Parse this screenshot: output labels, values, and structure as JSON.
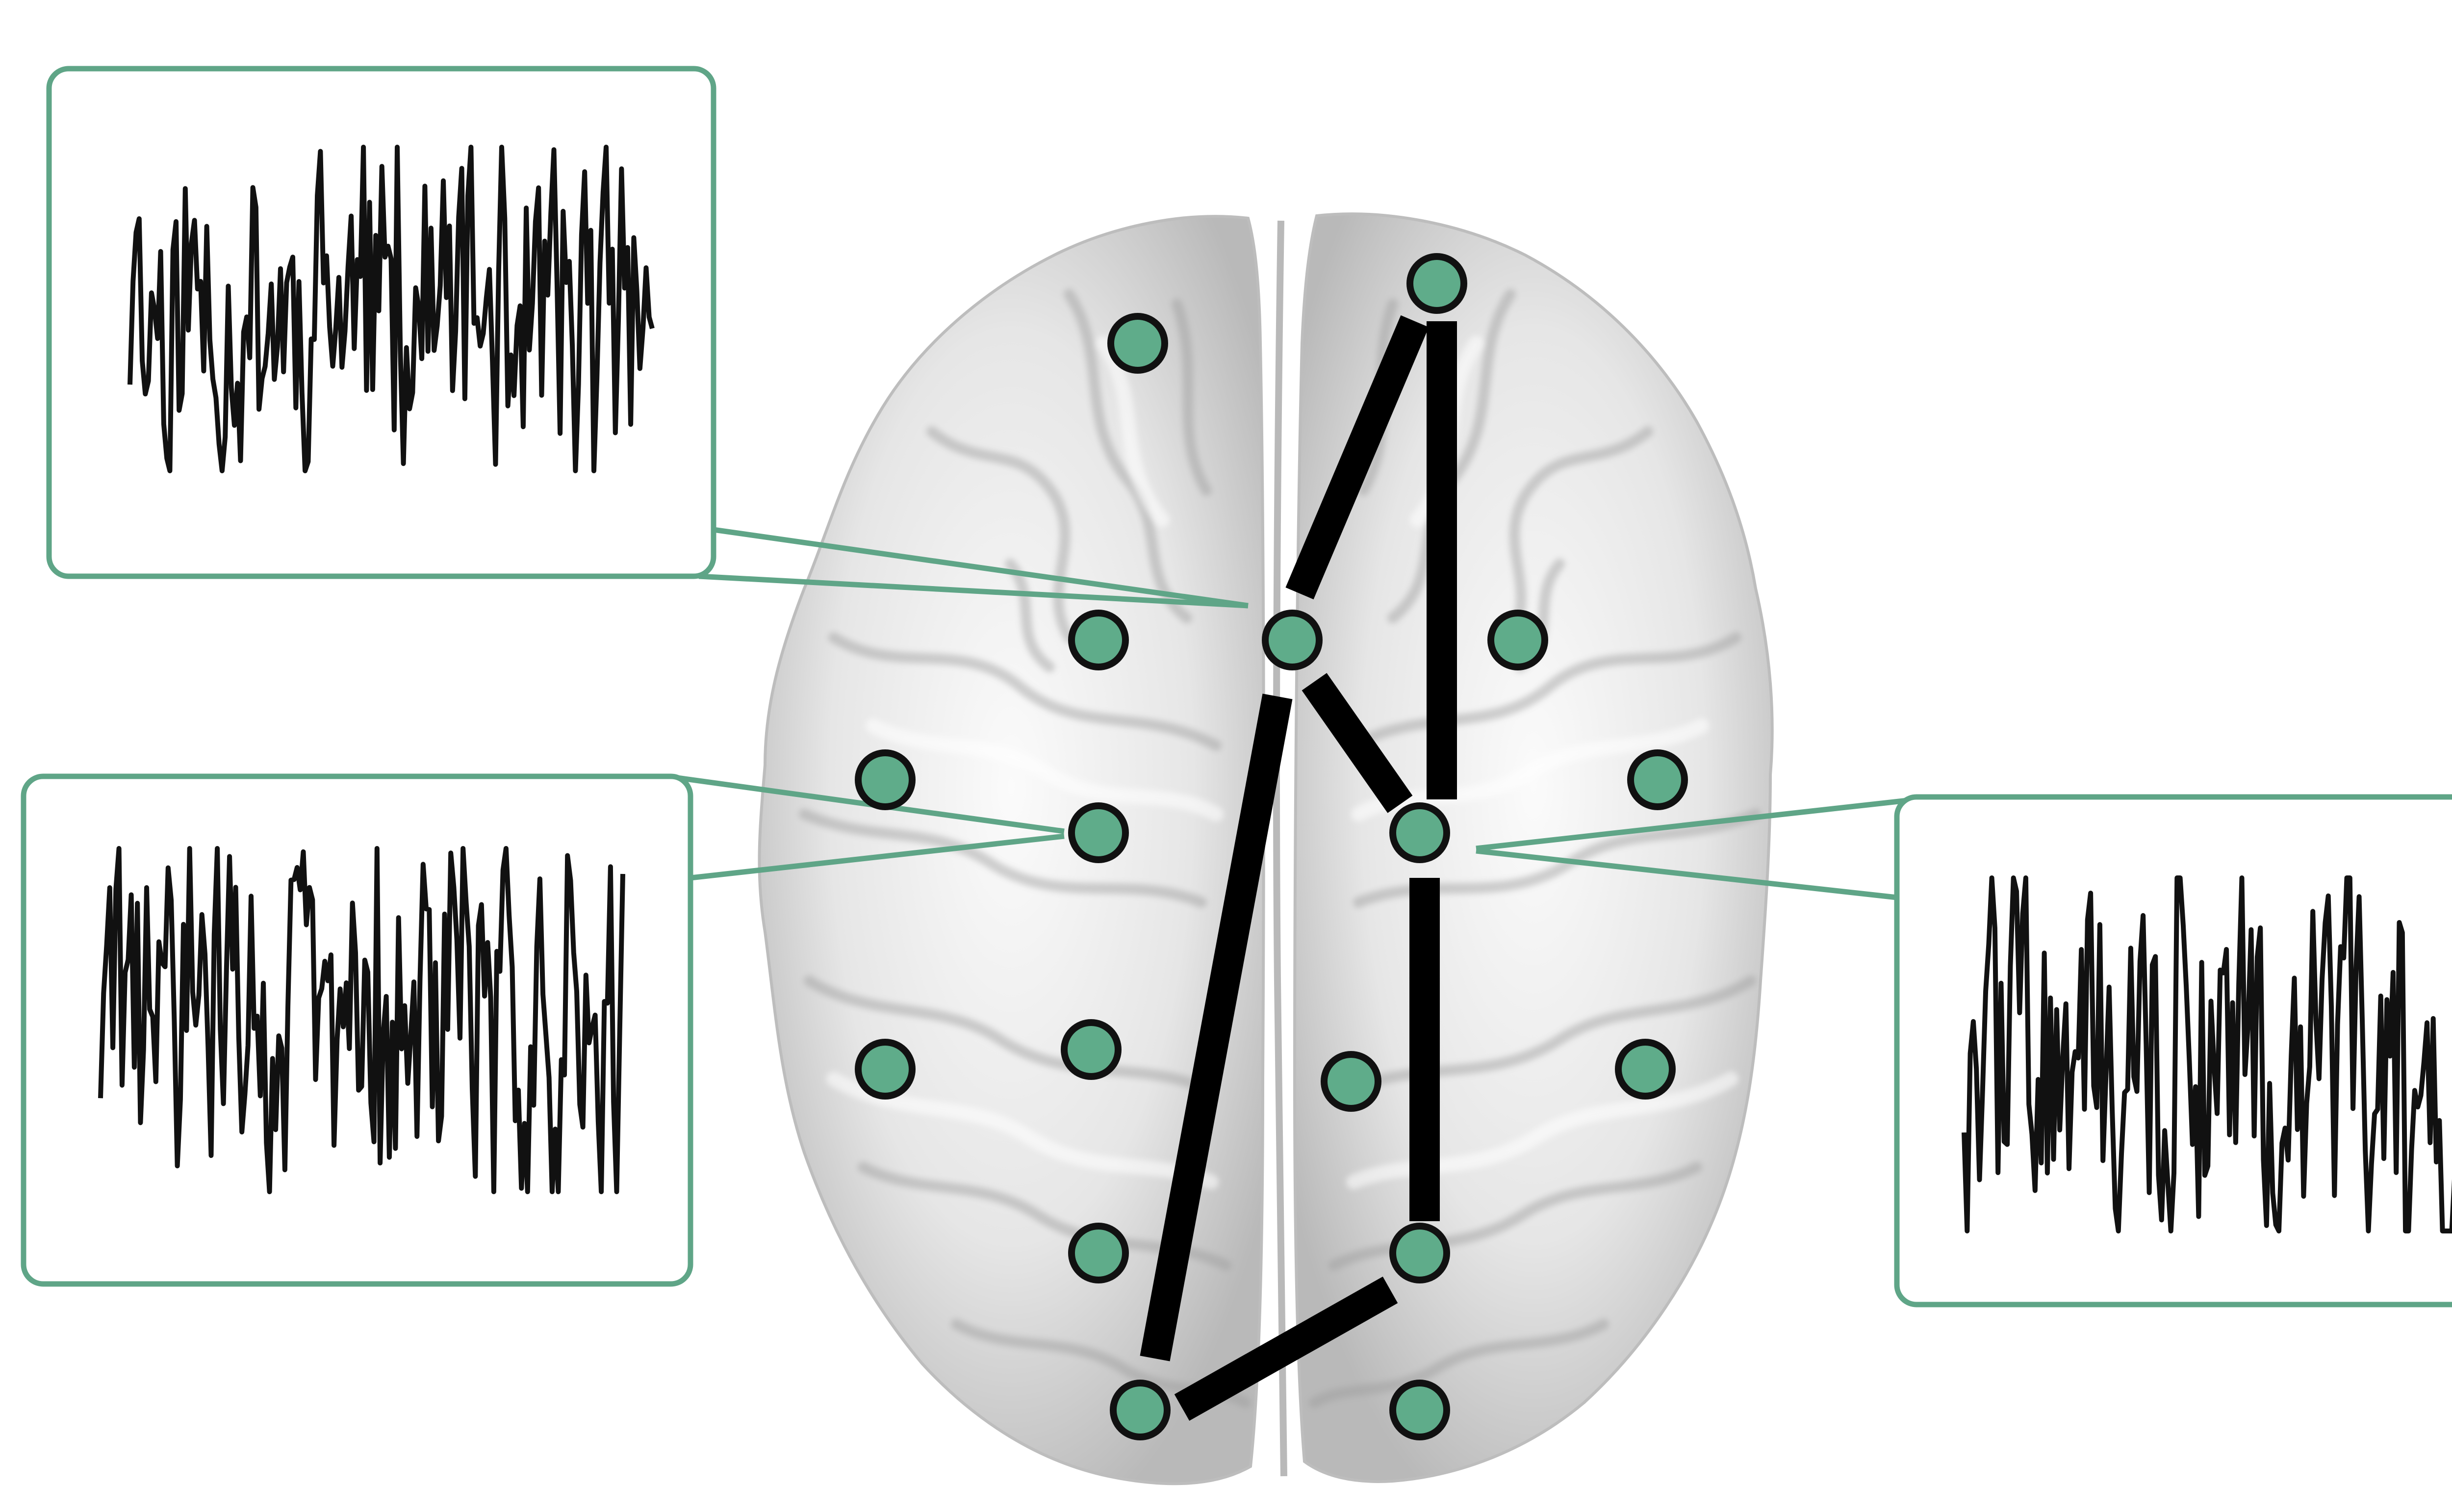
{
  "figure": {
    "subject": "brain-network-diagram",
    "colors": {
      "node_fill": "#5fac8a",
      "node_stroke": "#111111",
      "edge": "#000000",
      "panel_border": "#5fa587",
      "trace": "#111111",
      "brain_base": "#e4e4e4",
      "brain_shadow": "#9a9a9a",
      "brain_light": "#fafafa"
    },
    "nodes": [
      {
        "id": "n1"
      },
      {
        "id": "n2"
      },
      {
        "id": "n3"
      },
      {
        "id": "n4"
      },
      {
        "id": "n5"
      },
      {
        "id": "n6"
      },
      {
        "id": "n7"
      },
      {
        "id": "n8"
      },
      {
        "id": "n9"
      },
      {
        "id": "n10"
      },
      {
        "id": "n11"
      },
      {
        "id": "n12"
      },
      {
        "id": "n13"
      },
      {
        "id": "n14"
      },
      {
        "id": "n15"
      },
      {
        "id": "n16"
      },
      {
        "id": "n17"
      },
      {
        "id": "n18"
      }
    ],
    "edges": [
      {
        "from": "n2",
        "to": "n4"
      },
      {
        "from": "n2",
        "to": "n9"
      },
      {
        "from": "n4",
        "to": "n9"
      },
      {
        "from": "n4",
        "to": "n17"
      },
      {
        "from": "n9",
        "to": "n16"
      },
      {
        "from": "n16",
        "to": "n17"
      }
    ],
    "signal_panels": [
      {
        "id": "top-left",
        "linked_node": "n4"
      },
      {
        "id": "mid-left",
        "linked_node": "n8"
      },
      {
        "id": "right",
        "linked_node": "n9"
      }
    ]
  }
}
